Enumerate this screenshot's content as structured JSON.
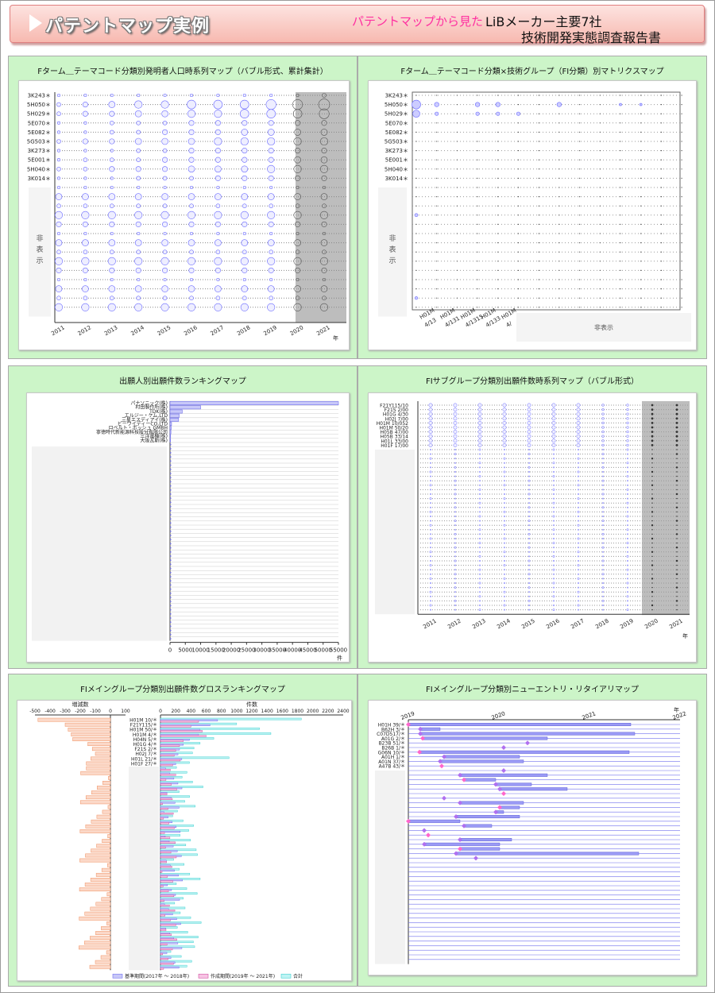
{
  "header": {
    "title": "パテントマップ実例",
    "subtitle": "パテントマップから見た",
    "report_line1": "LiBメーカー主要7社",
    "report_line2": "技術開発実態調査報告書"
  },
  "hidden_label": "非表示",
  "legend": {
    "base": "基準期間(2017年 ～ 2018年)",
    "created": "作成期間(2019年 ～ 2021年)",
    "total": "合計"
  },
  "colors": {
    "bubble": "#6b6bff",
    "bar": "#7070ee",
    "orange": "#f09060",
    "teal": "#40d0d0",
    "pink": "#ff66cc",
    "green": "#ccf5c8"
  },
  "chart_data": [
    {
      "id": "c1",
      "type": "scatter",
      "title": "Fターム＿テーマコード分類別発明者人口時系列マップ（バブル形式、累計集計）",
      "categories": [
        "3K243＊",
        "5H050＊",
        "5H029＊",
        "5E070＊",
        "5E082＊",
        "5G503＊",
        "3K273＊",
        "5E001＊",
        "5H040＊",
        "3K014＊"
      ],
      "x": [
        "2011",
        "2012",
        "2013",
        "2014",
        "2015",
        "2016",
        "2017",
        "2018",
        "2019",
        "2020",
        "2021"
      ],
      "x_unit": "年",
      "sizes": [
        [
          1,
          1,
          1,
          1,
          1,
          1,
          1,
          1,
          1,
          1,
          2
        ],
        [
          2,
          3,
          4,
          5,
          5,
          6,
          6,
          6,
          7,
          7,
          8
        ],
        [
          2,
          3,
          3,
          4,
          4,
          5,
          5,
          6,
          6,
          6,
          7
        ],
        [
          1,
          1,
          2,
          2,
          2,
          3,
          3,
          3,
          3,
          3,
          3
        ],
        [
          1,
          1,
          2,
          2,
          3,
          3,
          3,
          4,
          4,
          4,
          4
        ],
        [
          2,
          3,
          3,
          4,
          4,
          4,
          5,
          5,
          5,
          5,
          5
        ],
        [
          1,
          1,
          1,
          2,
          2,
          3,
          3,
          3,
          3,
          3,
          3
        ],
        [
          1,
          2,
          2,
          2,
          3,
          3,
          3,
          3,
          3,
          4,
          4
        ],
        [
          2,
          2,
          3,
          3,
          3,
          4,
          4,
          4,
          5,
          5,
          5
        ],
        [
          1,
          1,
          1,
          2,
          2,
          2,
          3,
          3,
          3,
          3,
          3
        ]
      ]
    },
    {
      "id": "c2",
      "type": "scatter",
      "title": "Fターム＿テーマコード分類×技術グループ（FI分類）別マトリクスマップ",
      "categories": [
        "3K243＊",
        "5H050＊",
        "5H029＊",
        "5E070＊",
        "5E082＊",
        "5G503＊",
        "3K273＊",
        "5E001＊",
        "5H040＊",
        "3K014＊"
      ],
      "x": [
        "H01M 4/13",
        "H01M 4/131",
        "H01M 4/1315",
        "H01M 4/133",
        "H01M 4/"
      ]
    },
    {
      "id": "c3",
      "type": "bar",
      "title": "出願人別出願件数ランキングマップ",
      "categories": [
        "パナソニック(株)",
        "村田製作所(株)",
        "TDK(株)",
        "エルジー・ケム,LTD",
        "三星エスディアイ(株)",
        "ビーワイディーCO,LTD",
        "ロベルト・ボッシュ GMBH",
        "寧徳時代新能源科技股分有限公司",
        "三洋電機(株)",
        "大阪瓦斯(株)"
      ],
      "values": [
        55000,
        10000,
        4000,
        3000,
        2800,
        500,
        400,
        300,
        200,
        150
      ],
      "xlim": [
        0,
        55000
      ],
      "ticks": [
        0,
        5000,
        10000,
        15000,
        20000,
        25000,
        30000,
        35000,
        40000,
        45000,
        50000,
        55000
      ],
      "x_unit": "件"
    },
    {
      "id": "c4",
      "type": "scatter",
      "title": "FIサブグループ分類別出願件数時系列マップ（バブル形式）",
      "categories": [
        "F21Y115/10",
        "F21S 2/00",
        "H01G 4/30",
        "H02J 7/00",
        "H01M 10/052",
        "H01M 50/20",
        "H05B 47/00",
        "H05B 33/14",
        "H01L 33/00",
        "H01F 17/00"
      ],
      "x": [
        "2011",
        "2012",
        "2013",
        "2014",
        "2015",
        "2016",
        "2017",
        "2018",
        "2019",
        "2020",
        "2021"
      ],
      "x_unit": "年"
    },
    {
      "id": "c5",
      "type": "bar",
      "title": "FIメイングループ分類別出願件数グロスランキングマップ",
      "categories": [
        "H01M 10/＊",
        "F21Y115/＊",
        "H01M 50/＊",
        "H01M 4/＊",
        "H04N 5/＊",
        "H01G 4/＊",
        "F21S 2/＊",
        "H02J 7/＊",
        "H01L 21/＊",
        "H01F 27/＊"
      ],
      "left_axis_label": "増減数",
      "left_ticks": [
        -500,
        -400,
        -300,
        -200,
        -100,
        0,
        100
      ],
      "right_axis_label": "件数",
      "right_ticks": [
        0,
        200,
        400,
        600,
        800,
        1000,
        1200,
        1400,
        1600,
        1800,
        2000,
        2200,
        2400
      ],
      "delta": [
        -480,
        -300,
        -280,
        -260,
        -250,
        -150,
        -120,
        -100,
        -130,
        -160
      ],
      "base": [
        750,
        650,
        520,
        500,
        380,
        300,
        250,
        230,
        280,
        200
      ],
      "created": [
        500,
        400,
        550,
        600,
        300,
        250,
        200,
        180,
        260,
        160
      ],
      "total": [
        1850,
        1000,
        1300,
        1450,
        700,
        520,
        440,
        420,
        900,
        380
      ]
    },
    {
      "id": "c6",
      "type": "table",
      "title": "FIメイングループ分類別ニューエントリ・リタイアリマップ",
      "categories": [
        "H01H 39/＊",
        "B62H 3/＊",
        "C07D517/＊",
        "A01G 2/＊",
        "B23B 51/＊",
        "B26B 1/＊",
        "G06N 10/＊",
        "A01H 1/＊",
        "A01N 37/＊",
        "A47B 43/＊"
      ],
      "x": [
        "2019",
        "2020",
        "2021",
        "2022"
      ],
      "x_unit": "年"
    }
  ]
}
